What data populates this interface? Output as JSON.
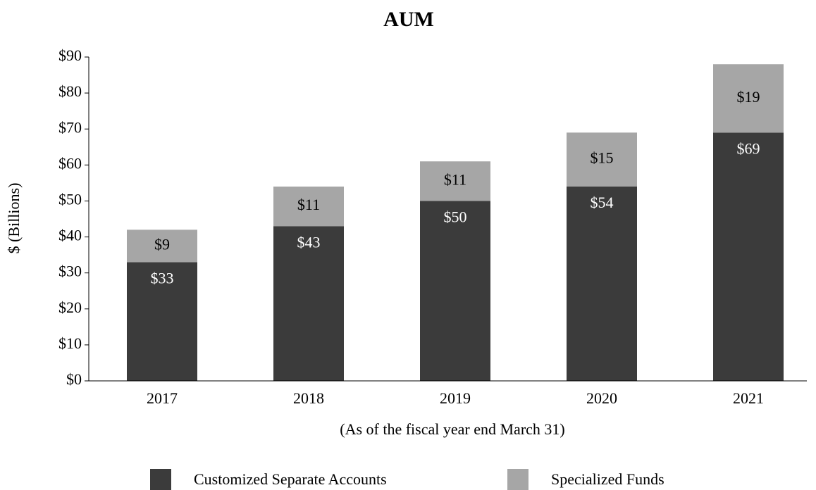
{
  "chart_data": {
    "type": "stacked_bar",
    "title": "AUM",
    "y_label": "$ (Billions)",
    "x_label": "(As of the fiscal year end March 31)",
    "categories": [
      "2017",
      "2018",
      "2019",
      "2020",
      "2021"
    ],
    "series": [
      {
        "name": "Customized Separate Accounts",
        "color": "#3b3b3b",
        "values": [
          33,
          43,
          50,
          54,
          69
        ],
        "value_labels": [
          "$33",
          "$43",
          "$50",
          "$54",
          "$69"
        ]
      },
      {
        "name": "Specialized Funds",
        "color": "#a6a6a6",
        "values": [
          9,
          11,
          11,
          15,
          19
        ],
        "value_labels": [
          "$9",
          "$11",
          "$11",
          "$15",
          "$19"
        ]
      }
    ],
    "ylim": [
      0,
      90
    ],
    "yticks": [
      {
        "value": 0,
        "label": "$0"
      },
      {
        "value": 10,
        "label": "$10"
      },
      {
        "value": 20,
        "label": "$20"
      },
      {
        "value": 30,
        "label": "$30"
      },
      {
        "value": 40,
        "label": "$40"
      },
      {
        "value": 50,
        "label": "$50"
      },
      {
        "value": 60,
        "label": "$60"
      },
      {
        "value": 70,
        "label": "$70"
      },
      {
        "value": 80,
        "label": "$80"
      },
      {
        "value": 90,
        "label": "$90"
      }
    ],
    "legend": "bottom",
    "grid": false
  }
}
